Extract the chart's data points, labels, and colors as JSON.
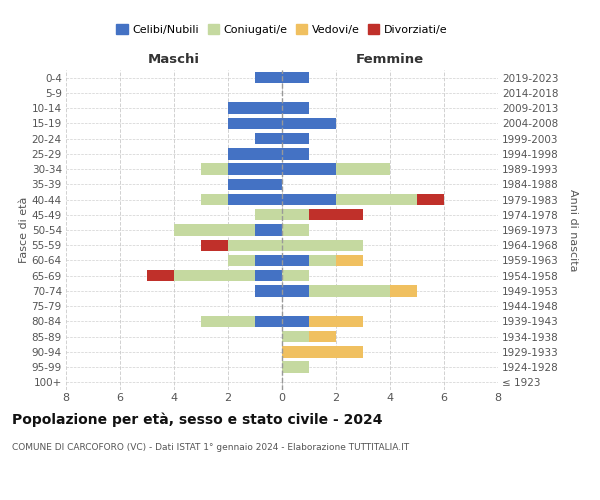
{
  "age_groups": [
    "100+",
    "95-99",
    "90-94",
    "85-89",
    "80-84",
    "75-79",
    "70-74",
    "65-69",
    "60-64",
    "55-59",
    "50-54",
    "45-49",
    "40-44",
    "35-39",
    "30-34",
    "25-29",
    "20-24",
    "15-19",
    "10-14",
    "5-9",
    "0-4"
  ],
  "birth_years": [
    "≤ 1923",
    "1924-1928",
    "1929-1933",
    "1934-1938",
    "1939-1943",
    "1944-1948",
    "1949-1953",
    "1954-1958",
    "1959-1963",
    "1964-1968",
    "1969-1973",
    "1974-1978",
    "1979-1983",
    "1984-1988",
    "1989-1993",
    "1994-1998",
    "1999-2003",
    "2004-2008",
    "2009-2013",
    "2014-2018",
    "2019-2023"
  ],
  "colors": {
    "celibi": "#4472c4",
    "coniugati": "#c5d9a0",
    "vedovi": "#f0c060",
    "divorziati": "#c0302a"
  },
  "males": {
    "celibi": [
      0,
      0,
      0,
      0,
      1,
      0,
      1,
      1,
      1,
      0,
      1,
      0,
      2,
      2,
      2,
      2,
      1,
      2,
      2,
      0,
      1
    ],
    "coniugati": [
      0,
      0,
      0,
      0,
      2,
      0,
      0,
      3,
      1,
      2,
      3,
      1,
      1,
      0,
      1,
      0,
      0,
      0,
      0,
      0,
      0
    ],
    "vedovi": [
      0,
      0,
      0,
      0,
      0,
      0,
      0,
      0,
      0,
      0,
      0,
      0,
      0,
      0,
      0,
      0,
      0,
      0,
      0,
      0,
      0
    ],
    "divorziati": [
      0,
      0,
      0,
      0,
      0,
      0,
      0,
      1,
      0,
      1,
      0,
      0,
      0,
      0,
      0,
      0,
      0,
      0,
      0,
      0,
      0
    ]
  },
  "females": {
    "celibi": [
      0,
      0,
      0,
      0,
      1,
      0,
      1,
      0,
      1,
      0,
      0,
      0,
      2,
      0,
      2,
      1,
      1,
      2,
      1,
      0,
      1
    ],
    "coniugati": [
      0,
      1,
      0,
      1,
      0,
      0,
      3,
      1,
      1,
      3,
      1,
      1,
      3,
      0,
      2,
      0,
      0,
      0,
      0,
      0,
      0
    ],
    "vedovi": [
      0,
      0,
      3,
      1,
      2,
      0,
      1,
      0,
      1,
      0,
      0,
      0,
      0,
      0,
      0,
      0,
      0,
      0,
      0,
      0,
      0
    ],
    "divorziati": [
      0,
      0,
      0,
      0,
      0,
      0,
      0,
      0,
      0,
      0,
      0,
      2,
      1,
      0,
      0,
      0,
      0,
      0,
      0,
      0,
      0
    ]
  },
  "xlim": 8,
  "title": "Popolazione per età, sesso e stato civile - 2024",
  "subtitle": "COMUNE DI CARCOFORO (VC) - Dati ISTAT 1° gennaio 2024 - Elaborazione TUTTITALIA.IT",
  "ylabel_left": "Fasce di età",
  "ylabel_right": "Anni di nascita",
  "xlabel_left": "Maschi",
  "xlabel_right": "Femmine",
  "legend_labels": [
    "Celibi/Nubili",
    "Coniugati/e",
    "Vedovi/e",
    "Divorziati/e"
  ],
  "bg_color": "#ffffff",
  "grid_color": "#cccccc"
}
